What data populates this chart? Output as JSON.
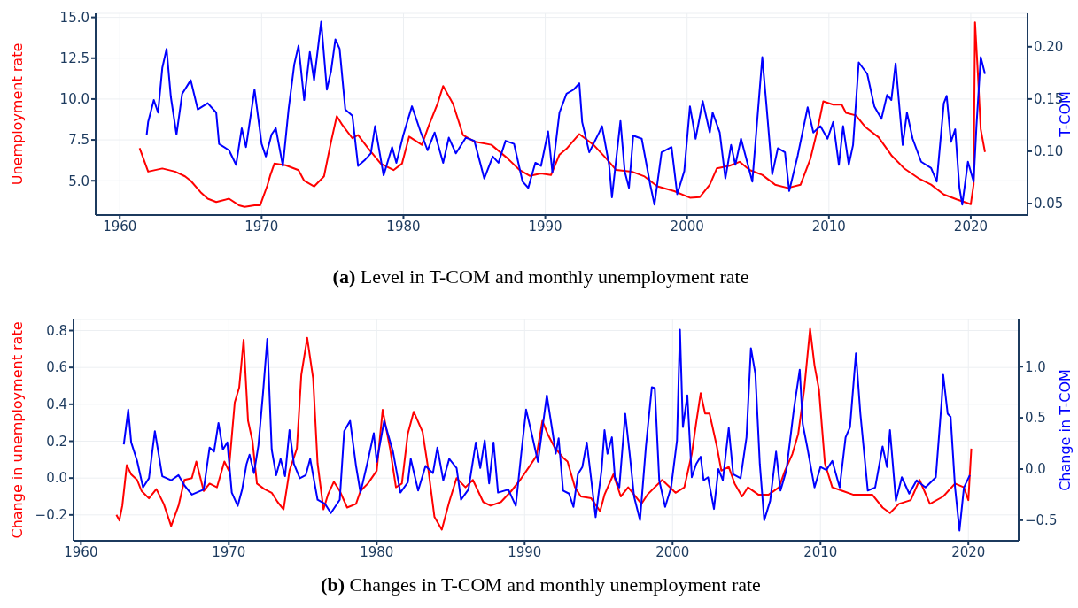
{
  "chart_data": [
    {
      "type": "line",
      "title": "(a) Level in T-COM and monthly unemployment rate",
      "ylabel": "Unemployment rate",
      "y2label": "T-COM",
      "xlim": [
        1958.3,
        2024
      ],
      "xticks": [
        1960,
        1970,
        1980,
        1990,
        2000,
        2010,
        2020
      ],
      "ylim": [
        2.9,
        15.25
      ],
      "yticks": [
        {
          "value": 5,
          "label": "5.0"
        },
        {
          "value": 7.5,
          "label": "7.5"
        },
        {
          "value": 10,
          "label": "10.0"
        },
        {
          "value": 12.5,
          "label": "12.5"
        },
        {
          "value": 15,
          "label": "15.0"
        }
      ],
      "y2lim": [
        0.039,
        0.232
      ],
      "y2ticks": [
        {
          "value": 0.05,
          "label": "0.05"
        },
        {
          "value": 0.1,
          "label": "0.10"
        },
        {
          "value": 0.15,
          "label": "0.15"
        },
        {
          "value": 0.2,
          "label": "0.20"
        }
      ],
      "grid": true,
      "series": [
        {
          "color": "#ff0000",
          "x": [
            1961.4,
            1962.0,
            1963.0,
            1963.9,
            1964.6,
            1965.0,
            1965.7,
            1966.2,
            1966.8,
            1967.7,
            1968.4,
            1968.8,
            1969.5,
            1969.9,
            1970.4,
            1970.6,
            1970.9,
            1971.7,
            1972.6,
            1973.0,
            1973.7,
            1974.4,
            1974.9,
            1975.3,
            1975.7,
            1976.4,
            1976.8,
            1977.5,
            1978.4,
            1979.3,
            1979.9,
            1980.4,
            1981.3,
            1981.8,
            1982.4,
            1982.8,
            1983.5,
            1984.2,
            1985.0,
            1986.2,
            1987.3,
            1988.2,
            1988.9,
            1989.7,
            1990.4,
            1991.0,
            1991.5,
            1992.4,
            1993.4,
            1994.3,
            1995.0,
            1996.1,
            1997.0,
            1997.9,
            1999.1,
            2000.2,
            2000.9,
            2001.6,
            2002.1,
            2003.0,
            2003.7,
            2004.4,
            2005.3,
            2006.2,
            2007.1,
            2008.0,
            2008.7,
            2009.2,
            2009.6,
            2010.3,
            2010.9,
            2011.2,
            2011.9,
            2012.6,
            2013.5,
            2014.4,
            2015.3,
            2016.3,
            2017.2,
            2018.1,
            2019.0,
            2020.0,
            2020.2,
            2020.3,
            2020.5,
            2020.7,
            2021.0
          ],
          "values": [
            7.0,
            5.56,
            5.75,
            5.56,
            5.27,
            5.0,
            4.3,
            3.9,
            3.7,
            3.9,
            3.5,
            3.4,
            3.5,
            3.5,
            4.7,
            5.3,
            6.05,
            5.95,
            5.65,
            5.0,
            4.65,
            5.27,
            7.4,
            8.95,
            8.4,
            7.6,
            7.8,
            7.0,
            6.05,
            5.65,
            6.05,
            7.7,
            7.2,
            8.4,
            9.7,
            10.8,
            9.7,
            7.8,
            7.4,
            7.2,
            6.4,
            5.65,
            5.3,
            5.45,
            5.35,
            6.6,
            6.96,
            7.86,
            7.2,
            6.36,
            5.66,
            5.56,
            5.26,
            4.66,
            4.36,
            3.96,
            4.0,
            4.76,
            5.76,
            5.92,
            6.16,
            5.66,
            5.36,
            4.76,
            4.56,
            4.76,
            6.36,
            8.16,
            9.86,
            9.66,
            9.66,
            9.16,
            9.0,
            8.26,
            7.66,
            6.56,
            5.76,
            5.16,
            4.76,
            4.16,
            3.86,
            3.56,
            4.76,
            14.7,
            11.56,
            8.16,
            6.76
          ]
        },
        {
          "color": "#0000ff",
          "axis": "y2",
          "x": [
            1961.9,
            1962.0,
            1962.4,
            1962.7,
            1963.0,
            1963.3,
            1963.6,
            1964.0,
            1964.4,
            1965.0,
            1965.5,
            1966.2,
            1966.8,
            1967.0,
            1967.7,
            1968.2,
            1968.6,
            1968.9,
            1969.5,
            1970.0,
            1970.3,
            1970.7,
            1971.0,
            1971.5,
            1971.9,
            1972.3,
            1972.6,
            1973.0,
            1973.4,
            1973.7,
            1974.2,
            1974.6,
            1974.9,
            1975.2,
            1975.5,
            1975.9,
            1976.4,
            1976.8,
            1977.3,
            1977.7,
            1978.0,
            1978.6,
            1979.2,
            1979.5,
            1980.0,
            1980.6,
            1981.2,
            1981.7,
            1982.2,
            1982.8,
            1983.2,
            1983.7,
            1984.4,
            1985.0,
            1985.7,
            1986.3,
            1986.7,
            1987.2,
            1987.8,
            1988.4,
            1988.8,
            1989.3,
            1989.7,
            1990.2,
            1990.5,
            1991.0,
            1991.5,
            1992.0,
            1992.4,
            1992.6,
            1993.1,
            1993.8,
            1994.0,
            1994.5,
            1994.7,
            1995.3,
            1995.6,
            1995.9,
            1996.2,
            1996.8,
            1997.4,
            1997.7,
            1998.2,
            1998.9,
            1999.3,
            1999.8,
            2000.2,
            2000.6,
            2001.1,
            2001.6,
            2001.8,
            2002.3,
            2002.7,
            2003.1,
            2003.4,
            2003.8,
            2004.6,
            2005.3,
            2005.6,
            2006.0,
            2006.4,
            2006.9,
            2007.2,
            2007.8,
            2008.5,
            2008.9,
            2009.4,
            2009.9,
            2010.3,
            2010.7,
            2011.0,
            2011.4,
            2011.7,
            2012.1,
            2012.7,
            2013.2,
            2013.7,
            2014.1,
            2014.4,
            2014.7,
            2015.2,
            2015.5,
            2015.9,
            2016.5,
            2017.2,
            2017.6,
            2018.1,
            2018.3,
            2018.6,
            2018.9,
            2019.2,
            2019.4,
            2019.8,
            2020.2,
            2020.4,
            2020.7,
            2021.0
          ],
          "values": [
            0.116,
            0.128,
            0.149,
            0.137,
            0.18,
            0.198,
            0.152,
            0.116,
            0.155,
            0.168,
            0.14,
            0.146,
            0.137,
            0.107,
            0.101,
            0.087,
            0.122,
            0.104,
            0.159,
            0.107,
            0.095,
            0.116,
            0.122,
            0.086,
            0.14,
            0.183,
            0.201,
            0.149,
            0.195,
            0.168,
            0.224,
            0.159,
            0.177,
            0.207,
            0.198,
            0.14,
            0.134,
            0.086,
            0.092,
            0.098,
            0.124,
            0.077,
            0.104,
            0.089,
            0.116,
            0.143,
            0.119,
            0.101,
            0.118,
            0.089,
            0.113,
            0.098,
            0.113,
            0.11,
            0.074,
            0.095,
            0.089,
            0.11,
            0.107,
            0.071,
            0.065,
            0.089,
            0.086,
            0.119,
            0.08,
            0.137,
            0.155,
            0.159,
            0.165,
            0.128,
            0.099,
            0.118,
            0.124,
            0.087,
            0.056,
            0.129,
            0.081,
            0.065,
            0.115,
            0.112,
            0.068,
            0.049,
            0.099,
            0.104,
            0.059,
            0.081,
            0.143,
            0.112,
            0.148,
            0.118,
            0.137,
            0.118,
            0.074,
            0.106,
            0.087,
            0.112,
            0.071,
            0.19,
            0.143,
            0.078,
            0.103,
            0.099,
            0.062,
            0.096,
            0.142,
            0.118,
            0.124,
            0.112,
            0.128,
            0.087,
            0.124,
            0.087,
            0.106,
            0.185,
            0.174,
            0.143,
            0.131,
            0.154,
            0.149,
            0.184,
            0.106,
            0.137,
            0.112,
            0.09,
            0.084,
            0.071,
            0.146,
            0.153,
            0.109,
            0.121,
            0.065,
            0.049,
            0.09,
            0.071,
            0.124,
            0.19,
            0.174
          ]
        }
      ]
    },
    {
      "type": "line",
      "title": "(b) Changes in T-COM and monthly unemployment rate",
      "ylabel": "Change in unemployment rate",
      "y2label": "Change in T-COM",
      "xlim": [
        1959.5,
        2023.4
      ],
      "xticks": [
        1960,
        1970,
        1980,
        1990,
        2000,
        2010,
        2020
      ],
      "ylim": [
        -0.34,
        0.86
      ],
      "yticks": [
        {
          "value": -0.2,
          "label": "−0.2"
        },
        {
          "value": 0,
          "label": "0.0"
        },
        {
          "value": 0.2,
          "label": "0.2"
        },
        {
          "value": 0.4,
          "label": "0.4"
        },
        {
          "value": 0.6,
          "label": "0.6"
        },
        {
          "value": 0.8,
          "label": "0.8"
        }
      ],
      "y2lim": [
        -0.7,
        1.46
      ],
      "y2ticks": [
        {
          "value": -0.5,
          "label": "−0.5"
        },
        {
          "value": 0,
          "label": "0.0"
        },
        {
          "value": 0.5,
          "label": "0.5"
        },
        {
          "value": 1,
          "label": "1.0"
        }
      ],
      "grid": true,
      "series": [
        {
          "color": "#ff0000",
          "x": [
            1962.4,
            1962.6,
            1962.8,
            1963.1,
            1963.4,
            1963.8,
            1964.1,
            1964.6,
            1965.1,
            1965.6,
            1966.1,
            1966.6,
            1967.0,
            1967.5,
            1967.8,
            1968.3,
            1968.7,
            1969.2,
            1969.7,
            1970.0,
            1970.4,
            1970.7,
            1971.0,
            1971.3,
            1971.6,
            1971.9,
            1972.4,
            1972.9,
            1973.3,
            1973.7,
            1974.1,
            1974.6,
            1974.9,
            1975.3,
            1975.7,
            1976.0,
            1976.4,
            1976.7,
            1977.1,
            1977.5,
            1978.0,
            1978.6,
            1978.9,
            1979.4,
            1980.0,
            1980.4,
            1980.9,
            1981.3,
            1981.7,
            1982.1,
            1982.5,
            1983.1,
            1983.5,
            1983.9,
            1984.4,
            1984.9,
            1985.4,
            1986.0,
            1986.5,
            1987.2,
            1987.7,
            1988.4,
            1989.1,
            1989.7,
            1990.3,
            1990.8,
            1991.2,
            1991.55,
            1992.0,
            1992.6,
            1992.9,
            1993.4,
            1993.8,
            1994.5,
            1995.1,
            1995.4,
            1996.0,
            1996.5,
            1997.0,
            1997.9,
            1998.3,
            1999.3,
            2000.2,
            2000.8,
            2001.3,
            2001.6,
            2001.9,
            2002.2,
            2002.5,
            2003.0,
            2003.3,
            2003.8,
            2004.2,
            2004.7,
            2005.1,
            2005.8,
            2006.5,
            2007.2,
            2007.6,
            2008.1,
            2008.5,
            2008.9,
            2009.3,
            2009.6,
            2009.9,
            2010.3,
            2010.8,
            2011.5,
            2012.2,
            2012.8,
            2013.5,
            2014.2,
            2014.7,
            2015.3,
            2016.1,
            2016.7,
            2017.4,
            2018.3,
            2019.1,
            2019.7,
            2020.0,
            2020.2
          ],
          "values": [
            -0.2,
            -0.23,
            -0.15,
            0.07,
            0.02,
            -0.01,
            -0.07,
            -0.11,
            -0.06,
            -0.14,
            -0.26,
            -0.15,
            -0.01,
            0.0,
            0.09,
            -0.07,
            -0.03,
            -0.05,
            0.09,
            0.04,
            0.41,
            0.49,
            0.75,
            0.31,
            0.2,
            -0.03,
            -0.06,
            -0.08,
            -0.13,
            -0.17,
            0.04,
            0.16,
            0.56,
            0.76,
            0.54,
            0.08,
            -0.17,
            -0.09,
            -0.02,
            -0.07,
            -0.16,
            -0.14,
            -0.07,
            -0.03,
            0.04,
            0.37,
            0.16,
            -0.05,
            -0.03,
            0.24,
            0.36,
            0.25,
            0.04,
            -0.21,
            -0.28,
            -0.13,
            0.0,
            -0.05,
            -0.01,
            -0.13,
            -0.15,
            -0.13,
            -0.07,
            -0.01,
            0.06,
            0.12,
            0.31,
            0.24,
            0.17,
            0.11,
            0.09,
            -0.05,
            -0.1,
            -0.11,
            -0.18,
            -0.09,
            0.02,
            -0.1,
            -0.05,
            -0.14,
            -0.09,
            -0.01,
            -0.08,
            -0.05,
            0.13,
            0.3,
            0.46,
            0.35,
            0.35,
            0.17,
            0.04,
            0.06,
            -0.03,
            -0.1,
            -0.05,
            -0.09,
            -0.09,
            -0.05,
            0.04,
            0.13,
            0.24,
            0.48,
            0.81,
            0.61,
            0.48,
            0.08,
            -0.05,
            -0.07,
            -0.09,
            -0.09,
            -0.09,
            -0.16,
            -0.19,
            -0.14,
            -0.12,
            -0.01,
            -0.14,
            -0.1,
            -0.03,
            -0.05,
            -0.12,
            0.16
          ]
        },
        {
          "color": "#0000ff",
          "axis": "y2",
          "x": [
            1962.9,
            1963.2,
            1963.4,
            1963.8,
            1964.2,
            1964.6,
            1965.0,
            1965.5,
            1966.1,
            1966.6,
            1967.0,
            1967.5,
            1968.3,
            1968.7,
            1969.0,
            1969.3,
            1969.6,
            1969.9,
            1970.2,
            1970.6,
            1970.9,
            1971.2,
            1971.4,
            1971.7,
            1972.0,
            1972.3,
            1972.6,
            1972.9,
            1973.2,
            1973.5,
            1973.8,
            1974.1,
            1974.4,
            1974.8,
            1975.2,
            1975.5,
            1976.0,
            1976.5,
            1976.9,
            1977.5,
            1977.8,
            1978.2,
            1978.6,
            1978.9,
            1979.4,
            1979.8,
            1980.0,
            1980.5,
            1981.1,
            1981.6,
            1982.1,
            1982.3,
            1982.8,
            1983.3,
            1983.8,
            1984.1,
            1984.5,
            1984.9,
            1985.4,
            1985.7,
            1986.2,
            1986.7,
            1987.0,
            1987.3,
            1987.6,
            1987.9,
            1988.2,
            1988.9,
            1989.4,
            1989.8,
            1990.1,
            1990.5,
            1990.9,
            1991.5,
            1991.9,
            1992.1,
            1992.3,
            1992.6,
            1993.0,
            1993.3,
            1993.6,
            1993.9,
            1994.2,
            1994.4,
            1994.8,
            1995.2,
            1995.4,
            1995.6,
            1995.9,
            1996.1,
            1996.4,
            1996.8,
            1997.1,
            1997.4,
            1997.8,
            1998.2,
            1998.6,
            1998.8,
            1999.1,
            1999.5,
            1999.9,
            2000.3,
            2000.5,
            2000.7,
            2001.0,
            2001.3,
            2001.6,
            2001.9,
            2002.1,
            2002.4,
            2002.8,
            2003.1,
            2003.4,
            2003.8,
            2004.1,
            2004.6,
            2005.0,
            2005.3,
            2005.6,
            2005.9,
            2006.2,
            2006.6,
            2007.0,
            2007.3,
            2007.7,
            2008.2,
            2008.6,
            2008.8,
            2009.1,
            2009.6,
            2010.0,
            2010.4,
            2010.8,
            2011.3,
            2011.7,
            2012.0,
            2012.4,
            2012.7,
            2013.2,
            2013.7,
            2014.2,
            2014.5,
            2014.7,
            2015.1,
            2015.5,
            2016.0,
            2016.5,
            2017.1,
            2017.8,
            2018.2,
            2018.3,
            2018.6,
            2018.8,
            2019.1,
            2019.4,
            2019.7,
            2020.1
          ],
          "values": [
            0.24,
            0.58,
            0.26,
            0.08,
            -0.18,
            -0.09,
            0.37,
            -0.07,
            -0.11,
            -0.06,
            -0.16,
            -0.25,
            -0.2,
            0.21,
            0.17,
            0.45,
            0.19,
            0.26,
            -0.23,
            -0.36,
            -0.2,
            0.05,
            0.14,
            -0.04,
            0.23,
            0.72,
            1.27,
            0.19,
            -0.06,
            0.1,
            -0.07,
            0.38,
            0.05,
            -0.09,
            -0.06,
            0.1,
            -0.3,
            -0.34,
            -0.43,
            -0.3,
            0.37,
            0.47,
            0.03,
            -0.23,
            0.08,
            0.35,
            0.07,
            0.47,
            0.17,
            -0.23,
            -0.13,
            0.1,
            -0.21,
            0.03,
            -0.04,
            0.21,
            -0.11,
            0.1,
            0.01,
            -0.3,
            -0.2,
            0.26,
            0.01,
            0.28,
            -0.14,
            0.26,
            -0.23,
            -0.2,
            -0.36,
            0.19,
            0.58,
            0.33,
            0.07,
            0.72,
            0.35,
            0.15,
            0.3,
            -0.21,
            -0.24,
            -0.37,
            -0.05,
            0.02,
            0.26,
            0.02,
            -0.47,
            -0.01,
            0.38,
            0.15,
            0.31,
            -0.08,
            -0.18,
            0.54,
            0.15,
            -0.27,
            -0.5,
            0.22,
            0.8,
            0.79,
            -0.11,
            -0.37,
            -0.18,
            0.28,
            1.36,
            0.41,
            0.72,
            -0.08,
            0.05,
            0.12,
            -0.11,
            -0.08,
            -0.39,
            0.0,
            -0.11,
            0.4,
            -0.05,
            -0.09,
            0.31,
            1.18,
            0.93,
            0.05,
            -0.5,
            -0.31,
            0.17,
            -0.21,
            -0.01,
            0.58,
            0.97,
            0.44,
            0.22,
            -0.18,
            0.02,
            -0.01,
            0.08,
            -0.18,
            0.31,
            0.41,
            1.13,
            0.54,
            -0.21,
            -0.18,
            0.22,
            0.02,
            0.38,
            -0.31,
            -0.08,
            -0.24,
            -0.11,
            -0.18,
            -0.08,
            0.67,
            0.92,
            0.54,
            0.51,
            -0.18,
            -0.6,
            -0.18,
            -0.06
          ]
        }
      ]
    }
  ]
}
